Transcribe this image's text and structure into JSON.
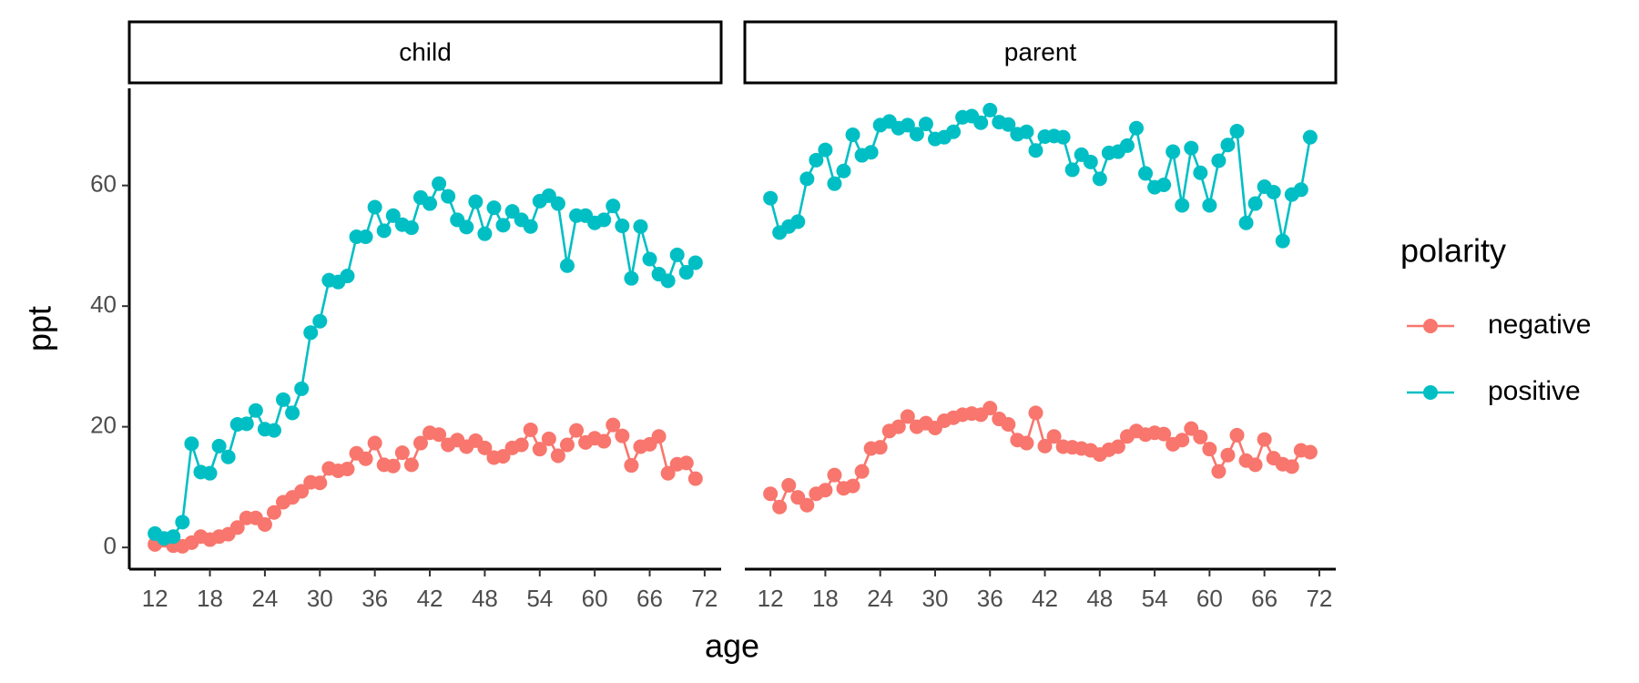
{
  "labels": {
    "x_label": "age",
    "y_label": "ppt",
    "legend_title": "polarity"
  },
  "chart_data": [
    {
      "type": "line",
      "title": "child",
      "x": [
        12,
        13,
        14,
        15,
        16,
        17,
        18,
        19,
        20,
        21,
        22,
        23,
        24,
        25,
        26,
        27,
        28,
        29,
        30,
        31,
        32,
        33,
        34,
        35,
        36,
        37,
        38,
        39,
        40,
        41,
        42,
        43,
        44,
        45,
        46,
        47,
        48,
        49,
        50,
        51,
        52,
        53,
        54,
        55,
        56,
        57,
        58,
        59,
        60,
        61,
        62,
        63,
        64,
        65,
        66,
        67,
        68,
        69,
        70,
        71
      ],
      "xlim": [
        9.2,
        73.8
      ],
      "xticks": [
        12,
        18,
        24,
        30,
        36,
        42,
        48,
        54,
        60,
        66,
        72
      ],
      "ylim": [
        -3.6,
        76.1
      ],
      "yticks": [
        0,
        20,
        40,
        60
      ],
      "series": [
        {
          "name": "negative",
          "color": "#F8766D",
          "values": [
            0.5,
            1.2,
            0.3,
            0.2,
            0.8,
            1.8,
            1.3,
            1.8,
            2.2,
            3.3,
            4.9,
            4.9,
            3.8,
            5.8,
            7.5,
            8.3,
            9.3,
            10.8,
            10.7,
            13.1,
            12.7,
            13.0,
            15.6,
            14.7,
            17.3,
            13.7,
            13.5,
            15.7,
            13.7,
            17.3,
            19.0,
            18.7,
            17.0,
            17.8,
            16.7,
            17.7,
            16.5,
            14.9,
            15.1,
            16.5,
            17.0,
            19.5,
            16.3,
            18.0,
            15.2,
            17.0,
            19.4,
            17.4,
            18.1,
            17.6,
            20.3,
            18.5,
            13.6,
            16.7,
            17.1,
            18.4,
            12.3,
            13.8,
            14.0,
            11.4
          ]
        },
        {
          "name": "positive",
          "color": "#00BFC4",
          "values": [
            2.3,
            1.5,
            1.8,
            4.2,
            17.2,
            12.5,
            12.3,
            16.8,
            15.0,
            20.4,
            20.5,
            22.7,
            19.6,
            19.4,
            24.5,
            22.3,
            26.3,
            35.6,
            37.5,
            44.3,
            44.0,
            45.0,
            51.5,
            51.5,
            56.4,
            52.5,
            55.0,
            53.5,
            53.0,
            58.0,
            57.0,
            60.3,
            58.2,
            54.3,
            53.1,
            57.3,
            52.0,
            56.3,
            53.4,
            55.7,
            54.3,
            53.2,
            57.4,
            58.3,
            57.0,
            46.7,
            55.0,
            55.0,
            53.8,
            54.3,
            56.6,
            53.3,
            44.6,
            53.2,
            47.8,
            45.3,
            44.2,
            48.5,
            45.6,
            47.2
          ]
        }
      ]
    },
    {
      "type": "line",
      "title": "parent",
      "x": [
        12,
        13,
        14,
        15,
        16,
        17,
        18,
        19,
        20,
        21,
        22,
        23,
        24,
        25,
        26,
        27,
        28,
        29,
        30,
        31,
        32,
        33,
        34,
        35,
        36,
        37,
        38,
        39,
        40,
        41,
        42,
        43,
        44,
        45,
        46,
        47,
        48,
        49,
        50,
        51,
        52,
        53,
        54,
        55,
        56,
        57,
        58,
        59,
        60,
        61,
        62,
        63,
        64,
        65,
        66,
        67,
        68,
        69,
        70,
        71
      ],
      "xlim": [
        9.2,
        73.8
      ],
      "xticks": [
        12,
        18,
        24,
        30,
        36,
        42,
        48,
        54,
        60,
        66,
        72
      ],
      "ylim": [
        -3.6,
        76.1
      ],
      "series": [
        {
          "name": "negative",
          "color": "#F8766D",
          "values": [
            8.9,
            6.7,
            10.3,
            8.3,
            7.0,
            8.9,
            9.5,
            12.0,
            9.8,
            10.2,
            12.6,
            16.4,
            16.6,
            19.3,
            20.0,
            21.7,
            20.0,
            20.6,
            19.8,
            21.0,
            21.5,
            22.0,
            22.2,
            22.0,
            23.1,
            21.3,
            20.4,
            17.8,
            17.3,
            22.3,
            16.8,
            18.4,
            16.7,
            16.6,
            16.4,
            16.1,
            15.4,
            16.2,
            16.7,
            18.4,
            19.3,
            18.7,
            19.0,
            18.8,
            17.1,
            17.8,
            19.7,
            18.3,
            16.3,
            12.6,
            15.3,
            18.6,
            14.4,
            13.7,
            17.9,
            14.8,
            13.8,
            13.4,
            16.1,
            15.8
          ]
        },
        {
          "name": "positive",
          "color": "#00BFC4",
          "values": [
            57.9,
            52.2,
            53.2,
            54.0,
            61.1,
            64.2,
            65.9,
            60.3,
            62.4,
            68.4,
            65.0,
            65.5,
            70.0,
            70.6,
            69.5,
            70.0,
            68.5,
            70.2,
            67.7,
            68.0,
            68.9,
            71.3,
            71.5,
            70.4,
            72.5,
            70.5,
            70.1,
            68.5,
            68.9,
            65.8,
            68.1,
            68.2,
            68.0,
            62.6,
            65.1,
            63.9,
            61.1,
            65.4,
            65.6,
            66.6,
            69.5,
            62.0,
            59.7,
            60.1,
            65.6,
            56.7,
            66.2,
            62.1,
            56.7,
            64.1,
            66.7,
            69.0,
            53.8,
            57.0,
            59.8,
            58.9,
            50.8,
            58.5,
            59.3,
            68.0
          ]
        }
      ]
    }
  ]
}
